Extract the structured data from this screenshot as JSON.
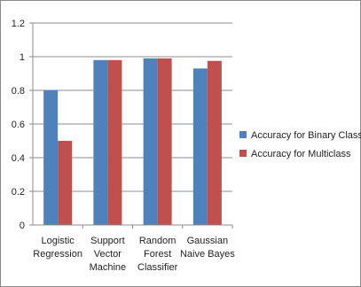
{
  "chart_data": {
    "type": "bar",
    "categories": [
      [
        "Logistic",
        "Regression"
      ],
      [
        "Support",
        "Vector",
        "Machine"
      ],
      [
        "Random",
        "Forest",
        "Classifier"
      ],
      [
        "Gaussian",
        "Naive Bayes"
      ]
    ],
    "series": [
      {
        "name": "Accuracy for Binary Class",
        "color": "#4F81BD",
        "values": [
          0.8,
          0.98,
          0.99,
          0.93
        ]
      },
      {
        "name": "Accuracy for Multiclass",
        "color": "#C0504D",
        "values": [
          0.5,
          0.98,
          0.99,
          0.975
        ]
      }
    ],
    "ylim": [
      0,
      1.2
    ],
    "yticks": [
      0,
      0.2,
      0.4,
      0.6,
      0.8,
      1,
      1.2
    ],
    "grid": true,
    "legend_position": "right"
  }
}
